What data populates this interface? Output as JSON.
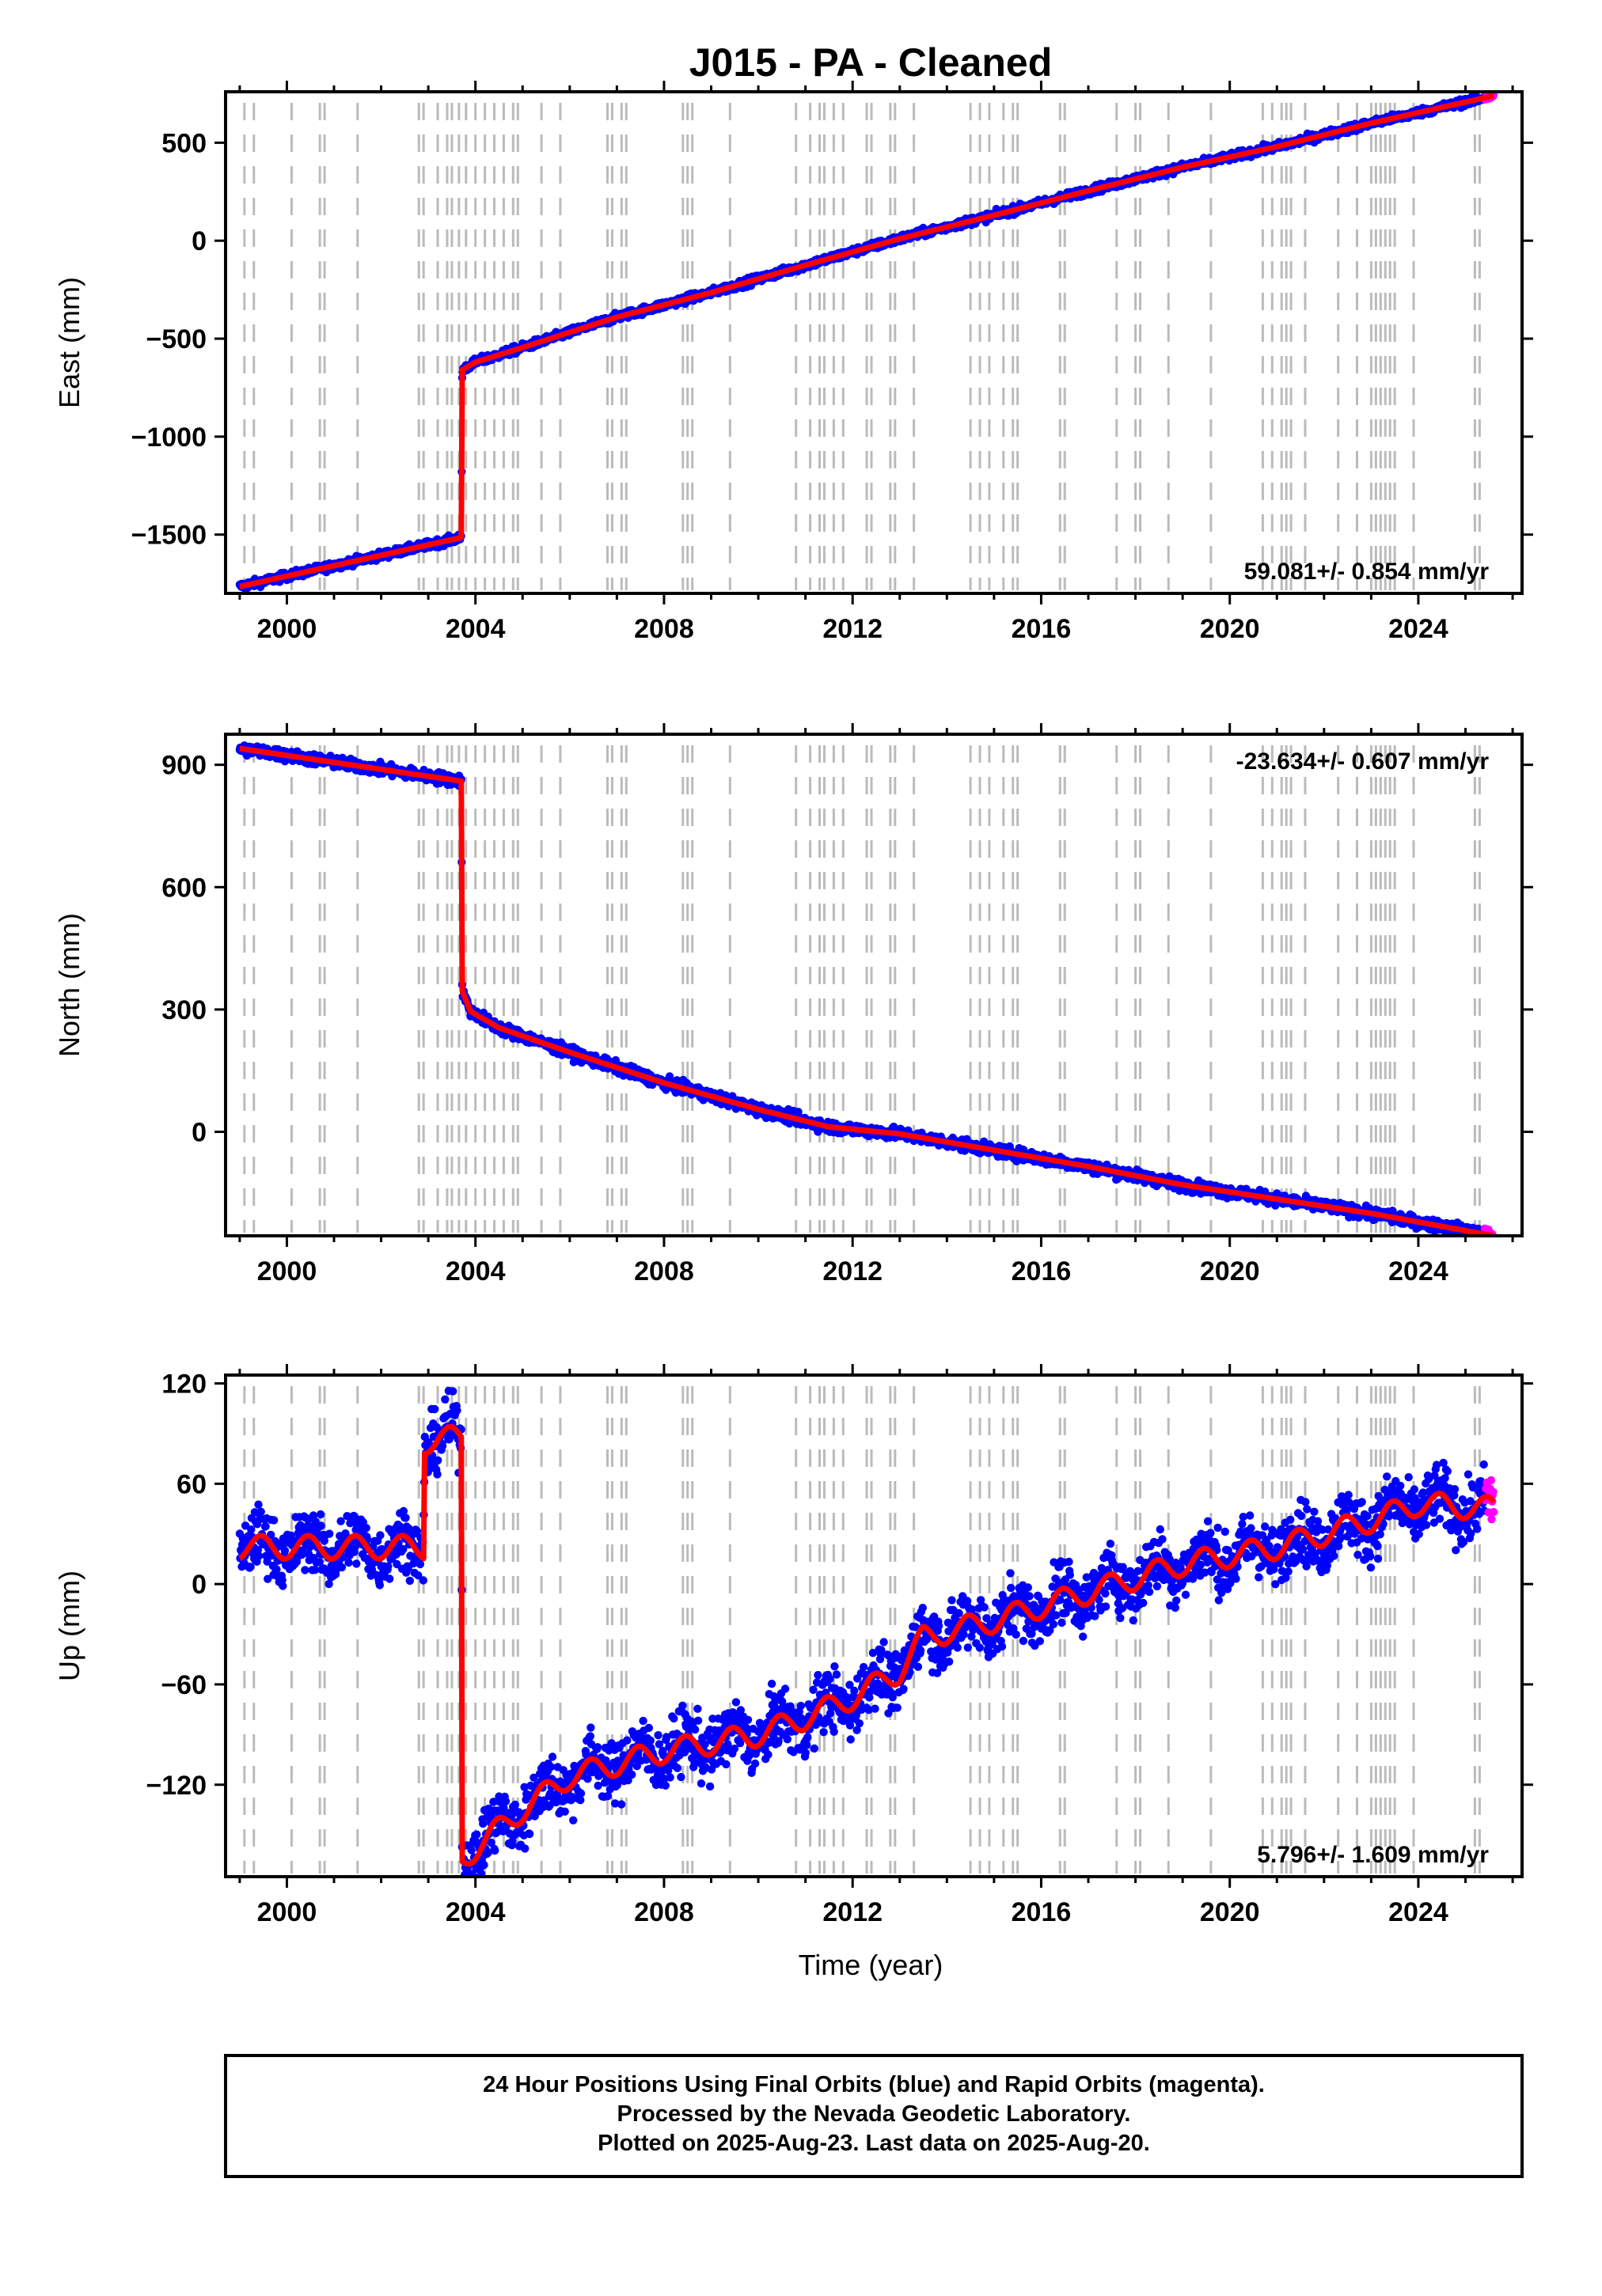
{
  "chart_data": {
    "title": "J015  - PA - Cleaned",
    "type": "scatter",
    "x_label": "Time (year)",
    "x_range": [
      1998.7,
      2026.2
    ],
    "x_ticks": [
      "2000",
      "2004",
      "2008",
      "2012",
      "2016",
      "2020",
      "2024"
    ],
    "colors": {
      "final": "#0000ff",
      "rapid": "#ff00ff",
      "model": "#ff0000",
      "steps": "#bbbbbb"
    },
    "step_epochs": [
      1999.1,
      1999.3,
      2000.1,
      2000.7,
      2000.8,
      2001.5,
      2002.8,
      2002.9,
      2003.2,
      2003.4,
      2003.5,
      2003.65,
      2003.8,
      2004.0,
      2004.2,
      2004.4,
      2004.6,
      2004.8,
      2004.9,
      2005.4,
      2005.8,
      2006.8,
      2006.9,
      2007.1,
      2007.2,
      2008.4,
      2008.5,
      2008.6,
      2009.4,
      2010.8,
      2011.1,
      2011.3,
      2011.4,
      2011.6,
      2011.8,
      2012.3,
      2012.4,
      2012.8,
      2012.9,
      2013.3,
      2014.5,
      2014.7,
      2014.9,
      2015.2,
      2015.4,
      2015.5,
      2016.4,
      2016.5,
      2017.6,
      2018.0,
      2018.1,
      2018.7,
      2019.6,
      2020.7,
      2020.9,
      2021.1,
      2021.2,
      2021.3,
      2021.6,
      2022.3,
      2022.7,
      2023.0,
      2023.1,
      2023.2,
      2023.3,
      2023.4,
      2023.5,
      2023.9,
      2025.2,
      2025.3
    ],
    "rapid_start": 2025.4,
    "panels": [
      {
        "name": "east",
        "ylabel": "East (mm)",
        "ylim": [
          -1800,
          760
        ],
        "yticks": [
          500,
          0,
          -500,
          -1000,
          -1500
        ],
        "ytick_labels": [
          "500",
          "0",
          "−500",
          "−1000",
          "−1500"
        ],
        "rate_text": "59.081+/- 0.854 mm/yr",
        "rate_position": "bottom-right",
        "model": [
          [
            1999.0,
            -1765
          ],
          [
            2003.7,
            -1515
          ],
          [
            2003.72,
            -660
          ],
          [
            2004.0,
            -620
          ],
          [
            2005.0,
            -545
          ],
          [
            2007.0,
            -390
          ],
          [
            2009.0,
            -265
          ],
          [
            2011.0,
            -125
          ],
          [
            2013.0,
            10
          ],
          [
            2015.0,
            130
          ],
          [
            2017.0,
            255
          ],
          [
            2019.0,
            375
          ],
          [
            2021.0,
            480
          ],
          [
            2023.0,
            600
          ],
          [
            2025.6,
            740
          ]
        ],
        "noise": 10,
        "seasonal": 0
      },
      {
        "name": "north",
        "ylabel": "North (mm)",
        "ylim": [
          -255,
          975
        ],
        "yticks": [
          900,
          600,
          300,
          0
        ],
        "ytick_labels": [
          "900",
          "600",
          "300",
          "0"
        ],
        "rate_text": "-23.634+/- 0.607 mm/yr",
        "rate_position": "top-right",
        "model": [
          [
            1999.0,
            940
          ],
          [
            2003.7,
            860
          ],
          [
            2003.72,
            345
          ],
          [
            2003.9,
            295
          ],
          [
            2004.5,
            255
          ],
          [
            2006.0,
            195
          ],
          [
            2008.0,
            120
          ],
          [
            2010.0,
            55
          ],
          [
            2011.5,
            12
          ],
          [
            2013.0,
            -5
          ],
          [
            2015.0,
            -45
          ],
          [
            2017.0,
            -85
          ],
          [
            2019.0,
            -130
          ],
          [
            2021.0,
            -165
          ],
          [
            2023.0,
            -200
          ],
          [
            2025.6,
            -255
          ]
        ],
        "noise": 7,
        "seasonal": 0
      },
      {
        "name": "up",
        "ylabel": "Up (mm)",
        "ylim": [
          -175,
          125
        ],
        "yticks": [
          120,
          60,
          0,
          -60,
          -120
        ],
        "ytick_labels": [
          "120",
          "60",
          "0",
          "−60",
          "−120"
        ],
        "rate_text": "5.796+/- 1.609 mm/yr",
        "rate_position": "bottom-right",
        "model": [
          [
            1999.0,
            22
          ],
          [
            2002.9,
            22
          ],
          [
            2002.92,
            85
          ],
          [
            2003.7,
            88
          ],
          [
            2003.72,
            -165
          ],
          [
            2004.0,
            -158
          ],
          [
            2005.0,
            -135
          ],
          [
            2006.0,
            -115
          ],
          [
            2008.0,
            -100
          ],
          [
            2010.0,
            -90
          ],
          [
            2011.0,
            -80
          ],
          [
            2012.0,
            -68
          ],
          [
            2013.0,
            -52
          ],
          [
            2013.5,
            -32
          ],
          [
            2015.0,
            -22
          ],
          [
            2017.0,
            -5
          ],
          [
            2019.0,
            12
          ],
          [
            2021.0,
            22
          ],
          [
            2023.0,
            38
          ],
          [
            2024.0,
            48
          ],
          [
            2025.6,
            45
          ]
        ],
        "noise": 9,
        "seasonal": 7
      }
    ]
  },
  "footer": {
    "line1": "24 Hour Positions Using Final Orbits (blue) and Rapid Orbits (magenta).",
    "line2": "Processed by the Nevada Geodetic Laboratory.",
    "line3": "Plotted on 2025-Aug-23. Last data on 2025-Aug-20."
  }
}
